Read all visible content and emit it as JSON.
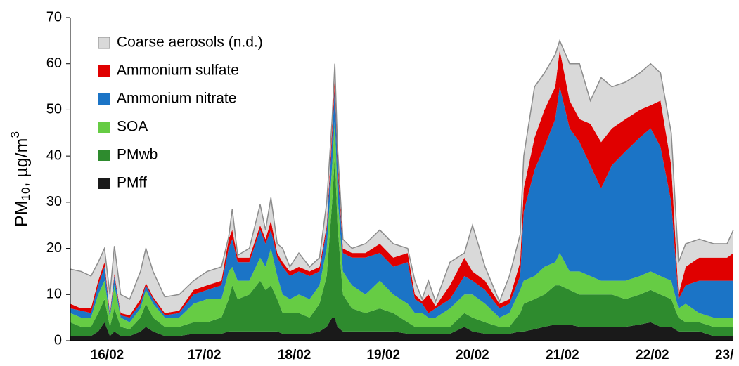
{
  "chart_data": {
    "type": "stacked-area",
    "y_label": {
      "main": "PM",
      "sub": "10",
      "rest": ", µg/m",
      "sup": "3"
    },
    "x": [
      16.1,
      16.22,
      16.33,
      16.41,
      16.48,
      16.54,
      16.59,
      16.66,
      16.76,
      16.88,
      16.94,
      17.02,
      17.15,
      17.31,
      17.47,
      17.62,
      17.78,
      17.86,
      17.9,
      17.96,
      18.09,
      18.21,
      18.27,
      18.33,
      18.4,
      18.46,
      18.54,
      18.64,
      18.76,
      18.87,
      18.95,
      19.01,
      19.04,
      19.07,
      19.13,
      19.23,
      19.38,
      19.54,
      19.69,
      19.85,
      19.93,
      20.01,
      20.08,
      20.16,
      20.32,
      20.48,
      20.57,
      20.71,
      20.87,
      20.98,
      21.1,
      21.14,
      21.26,
      21.37,
      21.49,
      21.54,
      21.65,
      21.76,
      21.88,
      22.0,
      22.12,
      22.27,
      22.43,
      22.55,
      22.66,
      22.78,
      22.86,
      22.94,
      23.09,
      23.25,
      23.4,
      23.47
    ],
    "series": [
      {
        "name": "PMff",
        "color": "#1a1a1a",
        "values": [
          1,
          1,
          1,
          2,
          4,
          1,
          2,
          1,
          1,
          2,
          3,
          2,
          1,
          1,
          1.5,
          1.5,
          1.5,
          2,
          2,
          2,
          2,
          2,
          2,
          2,
          2,
          1.5,
          1.5,
          1.5,
          1.5,
          2,
          3,
          5,
          5,
          3,
          2,
          2,
          2,
          2,
          2,
          1.5,
          1.5,
          1.5,
          1.5,
          1.5,
          1.5,
          3,
          2,
          1.5,
          1.5,
          1.5,
          2,
          2,
          2.5,
          3,
          3.5,
          3.5,
          3.5,
          3,
          3,
          3,
          3,
          3,
          3.5,
          4,
          3,
          3,
          2,
          2,
          2,
          1,
          1,
          1
        ]
      },
      {
        "name": "PMwb",
        "color": "#2e8b2e",
        "values": [
          3,
          2,
          2,
          4,
          5,
          2,
          5,
          2,
          1.5,
          3,
          5,
          3,
          2,
          2,
          2.5,
          2.5,
          3.5,
          7,
          10,
          7,
          8,
          11,
          9,
          10,
          7,
          4.5,
          4.5,
          4.5,
          3.5,
          6,
          11,
          25,
          35,
          22,
          8,
          5,
          4,
          5,
          4,
          2.5,
          1.5,
          1.5,
          1.5,
          1.5,
          1.5,
          3,
          3,
          2.5,
          1.5,
          1.5,
          4,
          6,
          6.5,
          7,
          8.5,
          8.5,
          7.5,
          7,
          7,
          7,
          7,
          6,
          6.5,
          7,
          7,
          6,
          3,
          2,
          2,
          2,
          2,
          2
        ]
      },
      {
        "name": "SOA",
        "color": "#66cc44",
        "values": [
          2,
          2,
          2,
          4,
          4,
          2,
          5,
          2,
          1.5,
          2,
          3,
          3,
          2,
          2,
          4,
          5,
          4,
          6,
          4,
          4,
          3,
          5,
          5,
          8,
          5,
          4,
          3,
          4,
          4,
          4,
          6,
          8,
          8,
          7,
          5,
          5,
          4,
          6,
          4,
          4,
          3,
          3,
          2,
          2,
          4,
          4,
          5,
          4,
          2,
          3,
          5,
          5,
          5,
          6,
          5,
          7,
          4,
          5,
          4,
          3,
          3,
          4,
          4,
          4,
          4,
          4,
          2,
          4,
          2,
          2,
          2,
          2
        ]
      },
      {
        "name": "Ammonium nitrate",
        "color": "#1b74c6",
        "values": [
          1,
          1.5,
          1,
          2,
          3,
          0.5,
          2,
          0.5,
          1,
          1,
          1,
          1,
          0.5,
          1,
          2,
          2,
          3,
          5,
          6,
          4,
          4,
          6,
          5,
          4,
          4,
          6,
          5,
          5,
          5,
          3,
          4,
          6,
          7,
          6,
          4,
          6,
          8,
          6,
          6,
          9,
          3,
          2,
          1,
          2,
          2,
          4,
          3,
          3,
          2,
          2,
          3,
          15,
          23,
          26,
          31,
          36,
          31,
          28,
          24,
          20,
          25,
          28,
          30,
          31,
          28,
          17,
          2,
          4,
          7,
          8,
          8,
          8
        ]
      },
      {
        "name": "Ammonium sulfate",
        "color": "#e00000",
        "values": [
          1,
          0.5,
          1,
          1,
          1,
          0.5,
          0.5,
          0.5,
          0.5,
          1,
          0.5,
          0.5,
          0.5,
          0.5,
          1,
          1,
          1,
          2,
          2,
          1,
          1,
          1,
          1,
          2,
          1,
          1,
          1,
          1,
          1,
          1,
          1,
          2,
          2,
          2,
          1,
          1,
          1,
          2,
          2,
          2,
          1,
          0.5,
          4,
          0.5,
          3,
          4,
          2,
          2,
          1,
          1,
          3,
          5,
          7,
          8,
          7,
          8,
          6,
          5,
          9,
          10,
          8,
          7,
          6,
          5,
          10,
          8,
          1,
          4,
          5,
          5,
          5,
          6
        ]
      },
      {
        "name": "Coarse aerosols (n.d.)",
        "color": "#d9d9d9",
        "values": [
          7.5,
          8,
          7,
          4,
          3,
          4,
          6,
          4,
          3.5,
          6,
          7.5,
          5.5,
          3.5,
          3.5,
          2,
          3,
          3,
          0.5,
          4.5,
          0.5,
          2,
          4.5,
          2,
          5,
          2,
          3,
          1,
          3,
          1,
          2,
          5,
          2,
          3,
          2,
          2,
          1,
          2,
          3,
          3,
          1,
          3,
          0.5,
          3,
          1,
          5,
          1,
          10,
          3,
          0.5,
          5,
          6,
          7,
          11,
          8,
          7,
          2,
          8,
          12,
          5,
          14,
          9,
          8,
          8,
          9,
          6,
          7,
          7,
          5,
          4,
          3,
          3,
          5
        ]
      }
    ],
    "xlim": [
      16.1,
      23.47
    ],
    "xticks": [
      {
        "value": 16.51,
        "label": "16/02"
      },
      {
        "value": 17.59,
        "label": "17/02"
      },
      {
        "value": 18.59,
        "label": "18/02"
      },
      {
        "value": 19.58,
        "label": "19/02"
      },
      {
        "value": 20.57,
        "label": "20/02"
      },
      {
        "value": 21.57,
        "label": "21/02"
      },
      {
        "value": 22.57,
        "label": "22/02"
      },
      {
        "value": 23.37,
        "label": "23/"
      }
    ],
    "ylim": [
      0,
      70
    ],
    "yticks": [
      0,
      10,
      20,
      30,
      40,
      50,
      60,
      70
    ],
    "legend": "top-left",
    "outline_color": "#8c8c8c"
  }
}
